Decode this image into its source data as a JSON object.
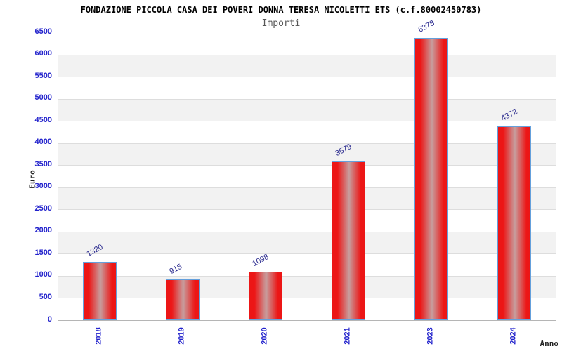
{
  "header": {
    "title": "FONDAZIONE PICCOLA CASA DEI POVERI DONNA TERESA NICOLETTI ETS (c.f.80002450783)",
    "subtitle": "Importi"
  },
  "chart_data": {
    "type": "bar",
    "categories": [
      "2018",
      "2019",
      "2020",
      "2021",
      "2023",
      "2024"
    ],
    "values": [
      1320,
      915,
      1098,
      3579,
      6378,
      4372
    ],
    "title": "FONDAZIONE PICCOLA CASA DEI POVERI DONNA TERESA NICOLETTI ETS (c.f.80002450783)",
    "subtitle": "Importi",
    "xlabel": "Anno",
    "ylabel": "Euro",
    "ylim": [
      0,
      6500
    ],
    "ytick_step": 500,
    "grid": "horizontal gridlines every 500 with alternating gray bands",
    "legend": "none",
    "value_labels": "above bars, rotated"
  },
  "style": {
    "bar_red": "#ec1616",
    "bar_highlight": "#c79e9e",
    "bar_border": "#64a0dc",
    "tick_label_blue": "#2222cc",
    "value_label_blue": "#2b2b8f",
    "band_gray": "#f2f2f2",
    "grid_line_gray": "#dddddd",
    "subtitle_gray": "#555555"
  }
}
